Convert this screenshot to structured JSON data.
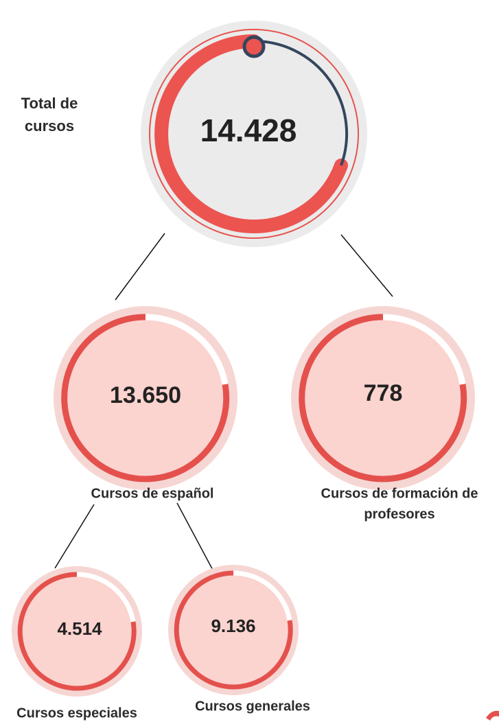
{
  "total": {
    "label_lines": [
      "Total de",
      "cursos"
    ],
    "value": "14.428"
  },
  "nodes": [
    {
      "value": "13.650",
      "label_lines": [
        "Cursos de español"
      ]
    },
    {
      "value": "778",
      "label_lines": [
        "Cursos de formación de",
        "profesores"
      ]
    },
    {
      "value": "4.514",
      "label_lines": [
        "Cursos especiales"
      ]
    },
    {
      "value": "9.136",
      "label_lines": [
        "Cursos generales"
      ]
    }
  ]
}
